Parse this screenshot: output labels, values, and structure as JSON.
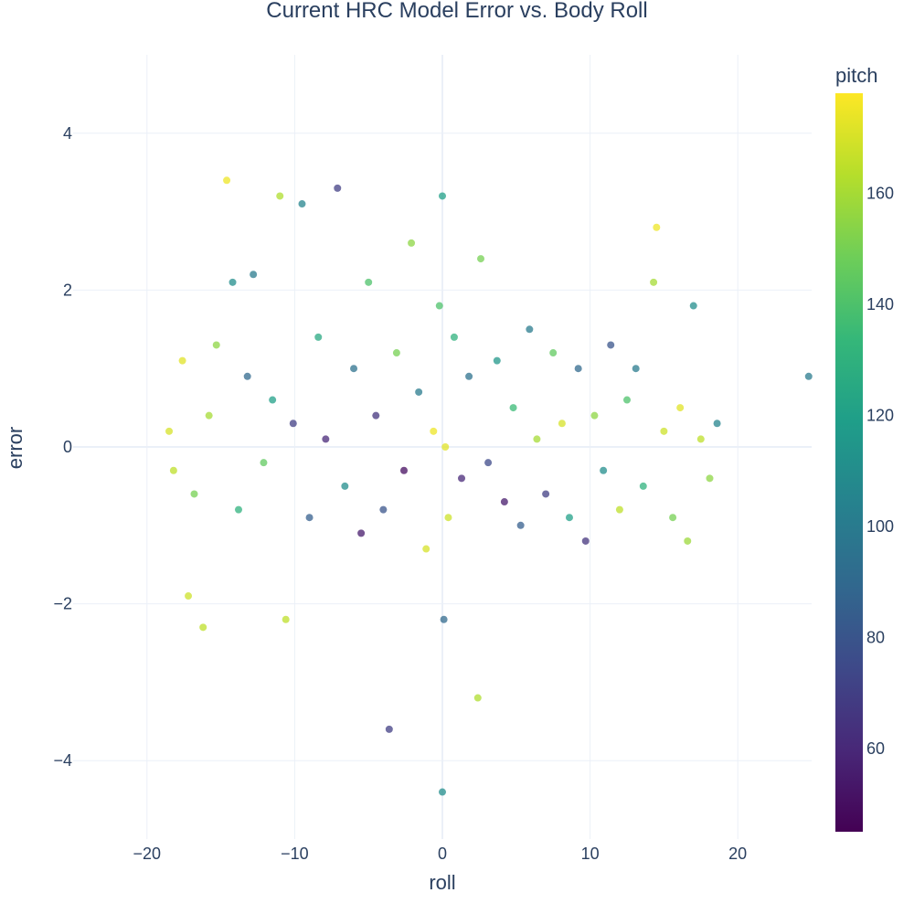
{
  "chart_data": {
    "type": "scatter",
    "title": "Current HRC Model Error vs. Body Roll",
    "xlabel": "roll",
    "ylabel": "error",
    "xlim": [
      -25,
      25
    ],
    "ylim": [
      -5,
      5
    ],
    "xticks": [
      -20,
      -10,
      0,
      10,
      20
    ],
    "xtick_labels": [
      "−20",
      "−10",
      "0",
      "10",
      "20"
    ],
    "yticks": [
      -4,
      -2,
      0,
      2,
      4
    ],
    "ytick_labels": [
      "−4",
      "−2",
      "0",
      "2",
      "4"
    ],
    "grid": true,
    "color_variable": "pitch",
    "colorscale": "viridis",
    "color_range": [
      45,
      178
    ],
    "colorbar_ticks": [
      60,
      80,
      100,
      120,
      140,
      160
    ],
    "colorbar_stops": [
      "#440154",
      "#482878",
      "#3e4989",
      "#31688e",
      "#26828e",
      "#1f9e89",
      "#35b779",
      "#6ece58",
      "#b5de2b",
      "#fde725"
    ],
    "points": [
      {
        "x": -18.5,
        "y": 0.2,
        "c": 170
      },
      {
        "x": -18.2,
        "y": -0.3,
        "c": 165
      },
      {
        "x": -17.6,
        "y": 1.1,
        "c": 172
      },
      {
        "x": -17.2,
        "y": -1.9,
        "c": 168
      },
      {
        "x": -16.8,
        "y": -0.6,
        "c": 150
      },
      {
        "x": -16.2,
        "y": -2.3,
        "c": 165
      },
      {
        "x": -15.8,
        "y": 0.4,
        "c": 160
      },
      {
        "x": -15.3,
        "y": 1.3,
        "c": 155
      },
      {
        "x": -14.6,
        "y": 3.4,
        "c": 175
      },
      {
        "x": -14.2,
        "y": 2.1,
        "c": 110
      },
      {
        "x": -13.8,
        "y": -0.8,
        "c": 130
      },
      {
        "x": -13.2,
        "y": 0.9,
        "c": 90
      },
      {
        "x": -12.8,
        "y": 2.2,
        "c": 100
      },
      {
        "x": -12.1,
        "y": -0.2,
        "c": 145
      },
      {
        "x": -11.5,
        "y": 0.6,
        "c": 120
      },
      {
        "x": -11.0,
        "y": 3.2,
        "c": 162
      },
      {
        "x": -10.6,
        "y": -2.2,
        "c": 165
      },
      {
        "x": -10.1,
        "y": 0.3,
        "c": 70
      },
      {
        "x": -9.5,
        "y": 3.1,
        "c": 105
      },
      {
        "x": -9.0,
        "y": -0.9,
        "c": 85
      },
      {
        "x": -8.4,
        "y": 1.4,
        "c": 125
      },
      {
        "x": -7.9,
        "y": 0.1,
        "c": 60
      },
      {
        "x": -7.1,
        "y": 3.3,
        "c": 70
      },
      {
        "x": -6.6,
        "y": -0.5,
        "c": 110
      },
      {
        "x": -6.0,
        "y": 1.0,
        "c": 95
      },
      {
        "x": -5.5,
        "y": -1.1,
        "c": 55
      },
      {
        "x": -5.0,
        "y": 2.1,
        "c": 140
      },
      {
        "x": -4.5,
        "y": 0.4,
        "c": 65
      },
      {
        "x": -4.0,
        "y": -0.8,
        "c": 80
      },
      {
        "x": -3.6,
        "y": -3.6,
        "c": 70
      },
      {
        "x": -3.1,
        "y": 1.2,
        "c": 150
      },
      {
        "x": -2.6,
        "y": -0.3,
        "c": 50
      },
      {
        "x": -2.1,
        "y": 2.6,
        "c": 155
      },
      {
        "x": -1.6,
        "y": 0.7,
        "c": 100
      },
      {
        "x": -1.1,
        "y": -1.3,
        "c": 170
      },
      {
        "x": -0.6,
        "y": 0.2,
        "c": 175
      },
      {
        "x": -0.2,
        "y": 1.8,
        "c": 140
      },
      {
        "x": 0.0,
        "y": 3.2,
        "c": 120
      },
      {
        "x": 0.0,
        "y": -4.4,
        "c": 110
      },
      {
        "x": 0.1,
        "y": -2.2,
        "c": 90
      },
      {
        "x": 0.2,
        "y": 0.0,
        "c": 172
      },
      {
        "x": 0.4,
        "y": -0.9,
        "c": 168
      },
      {
        "x": 0.8,
        "y": 1.4,
        "c": 130
      },
      {
        "x": 1.3,
        "y": -0.4,
        "c": 60
      },
      {
        "x": 1.8,
        "y": 0.9,
        "c": 95
      },
      {
        "x": 2.4,
        "y": -3.2,
        "c": 162
      },
      {
        "x": 2.6,
        "y": 2.4,
        "c": 150
      },
      {
        "x": 3.1,
        "y": -0.2,
        "c": 75
      },
      {
        "x": 3.7,
        "y": 1.1,
        "c": 115
      },
      {
        "x": 4.2,
        "y": -0.7,
        "c": 55
      },
      {
        "x": 4.8,
        "y": 0.5,
        "c": 135
      },
      {
        "x": 5.3,
        "y": -1.0,
        "c": 85
      },
      {
        "x": 5.9,
        "y": 1.5,
        "c": 100
      },
      {
        "x": 6.4,
        "y": 0.1,
        "c": 160
      },
      {
        "x": 7.0,
        "y": -0.6,
        "c": 70
      },
      {
        "x": 7.5,
        "y": 1.2,
        "c": 145
      },
      {
        "x": 8.1,
        "y": 0.3,
        "c": 170
      },
      {
        "x": 8.6,
        "y": -0.9,
        "c": 120
      },
      {
        "x": 9.2,
        "y": 1.0,
        "c": 90
      },
      {
        "x": 9.7,
        "y": -1.2,
        "c": 65
      },
      {
        "x": 10.3,
        "y": 0.4,
        "c": 155
      },
      {
        "x": 10.9,
        "y": -0.3,
        "c": 110
      },
      {
        "x": 11.4,
        "y": 1.3,
        "c": 80
      },
      {
        "x": 12.0,
        "y": -0.8,
        "c": 165
      },
      {
        "x": 12.5,
        "y": 0.6,
        "c": 140
      },
      {
        "x": 13.1,
        "y": 1.0,
        "c": 100
      },
      {
        "x": 13.6,
        "y": -0.5,
        "c": 130
      },
      {
        "x": 14.3,
        "y": 2.1,
        "c": 160
      },
      {
        "x": 14.5,
        "y": 2.8,
        "c": 175
      },
      {
        "x": 15.0,
        "y": 0.2,
        "c": 168
      },
      {
        "x": 15.6,
        "y": -0.9,
        "c": 150
      },
      {
        "x": 16.1,
        "y": 0.5,
        "c": 172
      },
      {
        "x": 16.6,
        "y": -1.2,
        "c": 158
      },
      {
        "x": 17.0,
        "y": 1.8,
        "c": 110
      },
      {
        "x": 17.5,
        "y": 0.1,
        "c": 165
      },
      {
        "x": 18.1,
        "y": -0.4,
        "c": 155
      },
      {
        "x": 18.6,
        "y": 0.3,
        "c": 105
      },
      {
        "x": 24.8,
        "y": 0.9,
        "c": 100
      }
    ]
  }
}
